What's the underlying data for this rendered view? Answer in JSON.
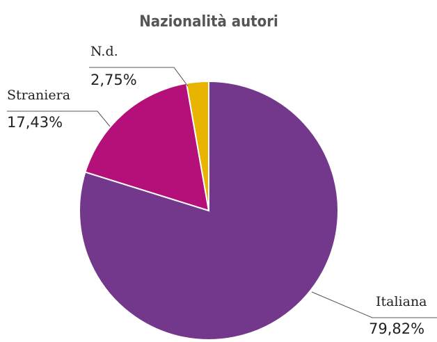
{
  "chart_data": {
    "type": "pie",
    "title": "Nazionalità autori",
    "categories": [
      "Italiana",
      "Straniera",
      "N.d."
    ],
    "values": [
      79.82,
      17.43,
      2.75
    ],
    "value_labels": [
      "79,82%",
      "17,43%",
      "2,75%"
    ],
    "colors": [
      "#73378c",
      "#b5107a",
      "#e8b400"
    ]
  }
}
